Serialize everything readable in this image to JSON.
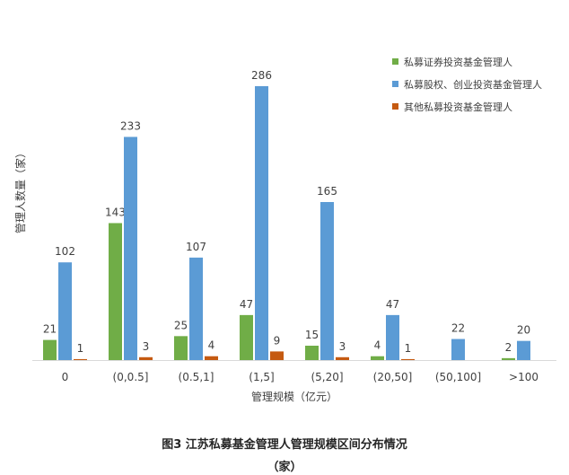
{
  "chart_data": {
    "type": "bar",
    "categories": [
      "0",
      "(0,0.5]",
      "(0.5,1]",
      "(1,5]",
      "(5,20]",
      "(20,50]",
      "(50,100]",
      ">100"
    ],
    "series": [
      {
        "name": "私募证券投资基金管理人",
        "values": [
          21,
          143,
          25,
          47,
          15,
          4,
          null,
          2
        ],
        "labels": [
          "21",
          "143",
          "25",
          "47",
          "15",
          "4",
          "",
          "2"
        ],
        "color": "#70AD47"
      },
      {
        "name": "私募股权、创业投资基金管理人",
        "values": [
          102,
          233,
          107,
          286,
          165,
          47,
          22,
          20
        ],
        "labels": [
          "102",
          "233",
          "107",
          "286",
          "165",
          "47",
          "22",
          "20"
        ],
        "color": "#5B9BD5"
      },
      {
        "name": "其他私募投资基金管理人",
        "values": [
          1,
          3,
          4,
          9,
          3,
          1,
          null,
          null
        ],
        "labels": [
          "1",
          "3",
          "4",
          "9",
          "3",
          "1",
          "",
          ""
        ],
        "color": "#C55A11"
      }
    ],
    "xlabel": "管理规模（亿元）",
    "ylabel": "管理人数量（家）",
    "ylim": [
      0,
      300
    ],
    "grid": false,
    "legend_position": "top-right"
  },
  "caption": {
    "line1": "图3 江苏私募基金管理人管理规模区间分布情况",
    "line2": "（家）"
  }
}
